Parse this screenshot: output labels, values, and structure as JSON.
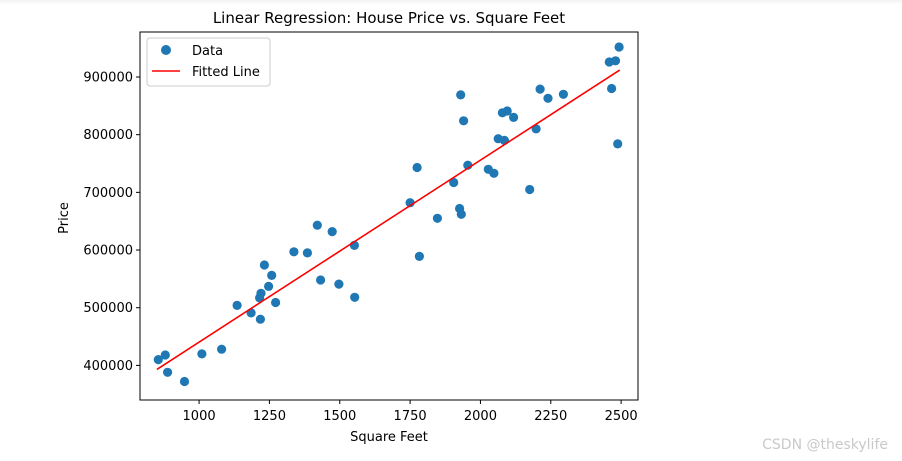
{
  "chart_data": {
    "type": "scatter",
    "title": "Linear Regression: House Price vs. Square Feet",
    "xlabel": "Square Feet",
    "ylabel": "Price",
    "xlim": [
      790,
      2560
    ],
    "ylim": [
      340000,
      978000
    ],
    "xticks": [
      1000,
      1250,
      1500,
      1750,
      2000,
      2250,
      2500
    ],
    "yticks": [
      400000,
      500000,
      600000,
      700000,
      800000,
      900000
    ],
    "xtick_labels": [
      "1000",
      "1250",
      "1500",
      "1750",
      "2000",
      "2250",
      "2500"
    ],
    "ytick_labels": [
      "400000",
      "500000",
      "600000",
      "700000",
      "800000",
      "900000"
    ],
    "grid": false,
    "legend_position": "top-left",
    "series": [
      {
        "name": "Data",
        "kind": "scatter",
        "color": "#1f77b4",
        "points": [
          [
            855,
            410000
          ],
          [
            880,
            418000
          ],
          [
            888,
            388000
          ],
          [
            948,
            372000
          ],
          [
            1010,
            420000
          ],
          [
            1080,
            428000
          ],
          [
            1135,
            504000
          ],
          [
            1185,
            491000
          ],
          [
            1215,
            517000
          ],
          [
            1218,
            480000
          ],
          [
            1220,
            525000
          ],
          [
            1232,
            574000
          ],
          [
            1247,
            537000
          ],
          [
            1258,
            556000
          ],
          [
            1272,
            509000
          ],
          [
            1337,
            597000
          ],
          [
            1385,
            595000
          ],
          [
            1420,
            643000
          ],
          [
            1432,
            548000
          ],
          [
            1473,
            632000
          ],
          [
            1497,
            541000
          ],
          [
            1552,
            608000
          ],
          [
            1553,
            518000
          ],
          [
            1750,
            682000
          ],
          [
            1775,
            743000
          ],
          [
            1783,
            589000
          ],
          [
            1847,
            655000
          ],
          [
            1905,
            717000
          ],
          [
            1926,
            672000
          ],
          [
            1930,
            869000
          ],
          [
            1932,
            662000
          ],
          [
            1940,
            824000
          ],
          [
            1955,
            747000
          ],
          [
            2028,
            740000
          ],
          [
            2048,
            733000
          ],
          [
            2063,
            793000
          ],
          [
            2078,
            838000
          ],
          [
            2085,
            790000
          ],
          [
            2095,
            841000
          ],
          [
            2118,
            830000
          ],
          [
            2175,
            705000
          ],
          [
            2198,
            810000
          ],
          [
            2212,
            879000
          ],
          [
            2240,
            863000
          ],
          [
            2295,
            870000
          ],
          [
            2458,
            926000
          ],
          [
            2466,
            880000
          ],
          [
            2480,
            928000
          ],
          [
            2488,
            784000
          ],
          [
            2493,
            952000
          ]
        ]
      },
      {
        "name": "Fitted Line",
        "kind": "line",
        "color": "#ff0000",
        "points": [
          [
            850,
            393000
          ],
          [
            2495,
            912000
          ]
        ]
      }
    ]
  },
  "watermark": "CSDN @theskylife"
}
